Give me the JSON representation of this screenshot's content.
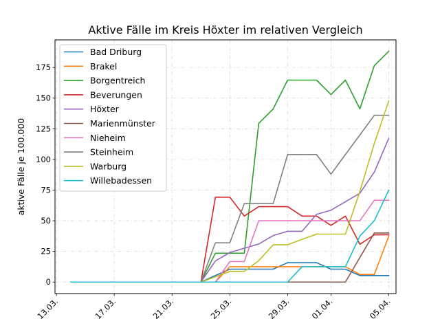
{
  "chart_data": {
    "type": "line",
    "title": "Aktive Fälle im Kreis Höxter im relativen Vergleich",
    "xlabel": "",
    "ylabel": "aktive Fälle je 100.000",
    "x": [
      "14.03.",
      "15.03.",
      "16.03.",
      "17.03.",
      "18.03.",
      "19.03.",
      "20.03.",
      "21.03.",
      "22.03.",
      "23.03.",
      "24.03.",
      "25.03.",
      "26.03.",
      "27.03.",
      "28.03.",
      "29.03.",
      "30.03.",
      "31.03.",
      "01.04.",
      "02.04.",
      "03.04.",
      "04.04.",
      "05.04."
    ],
    "x_ticks": [
      "13.03.",
      "17.03.",
      "21.03.",
      "25.03.",
      "29.03.",
      "01.04.",
      "05.04."
    ],
    "x_tick_index": [
      -1,
      3,
      7,
      11,
      15,
      18,
      22
    ],
    "xlim_index": [
      -1.1,
      22.5
    ],
    "ylim": [
      -9.4,
      197.5
    ],
    "y_ticks": [
      0,
      25,
      50,
      75,
      100,
      125,
      150,
      175
    ],
    "grid": true,
    "legend_position": "top-left",
    "series": [
      {
        "name": "Bad Driburg",
        "color": "#1f77b4",
        "values": [
          0,
          0,
          0,
          0,
          0,
          0,
          0,
          0,
          0,
          0,
          5.3,
          10.5,
          10.5,
          10.5,
          10.5,
          15.8,
          15.8,
          15.8,
          10.5,
          10.5,
          5.3,
          5.3,
          5.3
        ]
      },
      {
        "name": "Brakel",
        "color": "#ff7f0e",
        "values": [
          0,
          0,
          0,
          0,
          0,
          0,
          0,
          0,
          0,
          0,
          0,
          12.5,
          12.5,
          12.5,
          12.5,
          12.5,
          12.5,
          12.5,
          12.5,
          12.5,
          6.2,
          6.2,
          37.5
        ]
      },
      {
        "name": "Borgentreich",
        "color": "#2ca02c",
        "values": [
          0,
          0,
          0,
          0,
          0,
          0,
          0,
          0,
          0,
          0,
          23.5,
          23.5,
          23.5,
          129.4,
          141.2,
          164.7,
          164.7,
          164.7,
          152.9,
          164.7,
          141.2,
          176.5,
          188.2
        ]
      },
      {
        "name": "Beverungen",
        "color": "#d62728",
        "values": [
          0,
          0,
          0,
          0,
          0,
          0,
          0,
          0,
          0,
          0,
          69.2,
          69.2,
          53.8,
          61.5,
          61.5,
          61.5,
          53.8,
          53.8,
          46.2,
          53.8,
          30.8,
          38.5,
          38.5
        ]
      },
      {
        "name": "Höxter",
        "color": "#9467bd",
        "values": [
          0,
          0,
          0,
          0,
          0,
          0,
          0,
          0,
          0,
          0,
          17.2,
          24.1,
          27.6,
          31.0,
          37.9,
          41.4,
          41.4,
          55.2,
          58.6,
          65.5,
          72.4,
          89.7,
          117.2
        ]
      },
      {
        "name": "Marienmünster",
        "color": "#8c564b",
        "values": [
          0,
          0,
          0,
          0,
          0,
          0,
          0,
          0,
          0,
          0,
          0,
          0,
          0,
          0,
          0,
          0,
          0,
          0,
          0,
          0,
          20.0,
          40.0,
          40.0
        ]
      },
      {
        "name": "Nieheim",
        "color": "#e377c2",
        "values": [
          0,
          0,
          0,
          0,
          0,
          0,
          0,
          0,
          0,
          0,
          0,
          16.7,
          16.7,
          50.0,
          50.0,
          50.0,
          50.0,
          50.0,
          50.0,
          50.0,
          50.0,
          66.7,
          66.7
        ]
      },
      {
        "name": "Steinheim",
        "color": "#7f7f7f",
        "values": [
          0,
          0,
          0,
          0,
          0,
          0,
          0,
          0,
          0,
          0,
          32.0,
          32.0,
          64.0,
          64.0,
          64.0,
          104.0,
          104.0,
          104.0,
          88.0,
          104.0,
          120.0,
          136.0,
          136.0
        ]
      },
      {
        "name": "Warburg",
        "color": "#bcbd22",
        "values": [
          0,
          0,
          0,
          0,
          0,
          0,
          0,
          0,
          0,
          0,
          4.3,
          8.7,
          8.7,
          17.4,
          30.4,
          30.4,
          34.8,
          39.1,
          39.1,
          39.1,
          73.9,
          113.0,
          147.8
        ]
      },
      {
        "name": "Willebadessen",
        "color": "#17becf",
        "values": [
          0,
          0,
          0,
          0,
          0,
          0,
          0,
          0,
          0,
          0,
          0,
          0,
          0,
          0,
          0,
          0,
          12.5,
          12.5,
          12.5,
          12.5,
          37.5,
          50.0,
          75.0
        ]
      }
    ]
  }
}
